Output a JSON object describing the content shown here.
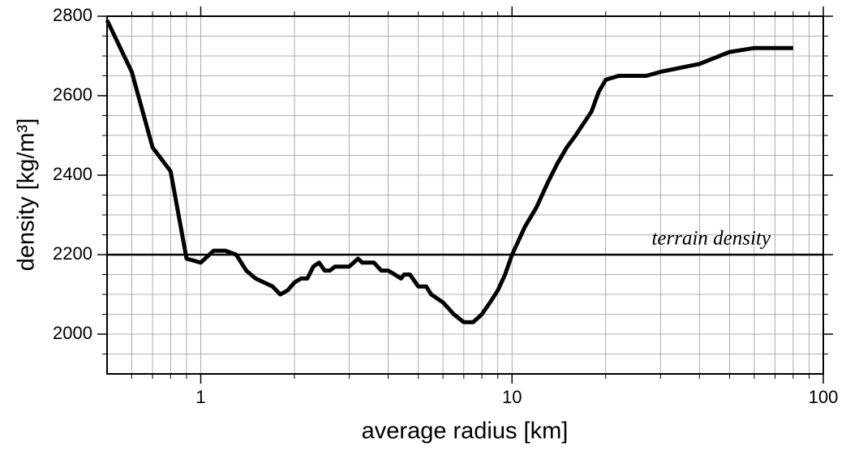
{
  "chart_data": {
    "type": "line",
    "x_label": "average radius [km]",
    "y_label": "density [kg/m³]",
    "xscale": "log",
    "xlim": [
      0.5,
      100
    ],
    "xticks": [
      1,
      10,
      100
    ],
    "xminorticks": [
      0.6,
      0.7,
      0.8,
      0.9,
      2,
      3,
      4,
      5,
      6,
      7,
      8,
      9,
      20,
      30,
      40,
      50,
      60,
      70,
      80,
      90
    ],
    "ylim": [
      1900,
      2800
    ],
    "yticks": [
      2000,
      2200,
      2400,
      2600,
      2800
    ],
    "yminorticks": [
      1950,
      2050,
      2100,
      2150,
      2250,
      2300,
      2350,
      2450,
      2500,
      2550,
      2650,
      2700,
      2750
    ],
    "grid": true,
    "hline": {
      "value": 2200,
      "label": "terrain density"
    },
    "series": [
      {
        "color": "#000000",
        "x": [
          0.5,
          0.6,
          0.7,
          0.8,
          0.9,
          1.0,
          1.1,
          1.2,
          1.3,
          1.4,
          1.5,
          1.7,
          1.8,
          1.9,
          2.0,
          2.1,
          2.2,
          2.3,
          2.4,
          2.5,
          2.6,
          2.7,
          3.0,
          3.2,
          3.3,
          3.6,
          3.8,
          4.0,
          4.2,
          4.4,
          4.5,
          4.7,
          5.0,
          5.3,
          5.5,
          6.0,
          6.5,
          7.0,
          7.5,
          8.0,
          8.5,
          9.0,
          9.5,
          10,
          11,
          12,
          13,
          14,
          15,
          16,
          18,
          19,
          20,
          22,
          27,
          30,
          40,
          50,
          60,
          80
        ],
        "values": [
          2790,
          2660,
          2470,
          2410,
          2190,
          2180,
          2210,
          2210,
          2200,
          2160,
          2140,
          2120,
          2100,
          2110,
          2130,
          2140,
          2140,
          2170,
          2180,
          2160,
          2160,
          2170,
          2170,
          2190,
          2180,
          2180,
          2160,
          2160,
          2150,
          2140,
          2150,
          2150,
          2120,
          2120,
          2100,
          2080,
          2050,
          2030,
          2030,
          2050,
          2080,
          2110,
          2150,
          2200,
          2270,
          2320,
          2380,
          2430,
          2470,
          2500,
          2560,
          2610,
          2640,
          2650,
          2650,
          2660,
          2680,
          2710,
          2720,
          2720
        ]
      }
    ]
  }
}
